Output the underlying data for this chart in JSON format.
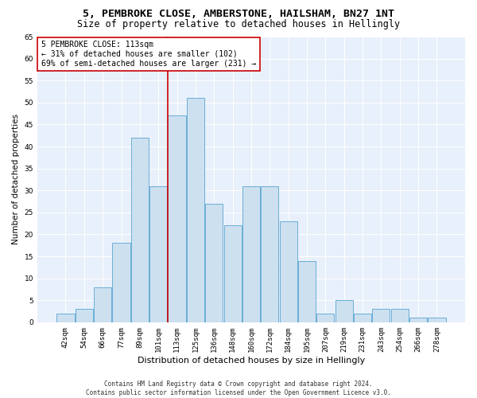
{
  "title1": "5, PEMBROKE CLOSE, AMBERSTONE, HAILSHAM, BN27 1NT",
  "title2": "Size of property relative to detached houses in Hellingly",
  "xlabel": "Distribution of detached houses by size in Hellingly",
  "ylabel": "Number of detached properties",
  "categories": [
    "42sqm",
    "54sqm",
    "66sqm",
    "77sqm",
    "89sqm",
    "101sqm",
    "113sqm",
    "125sqm",
    "136sqm",
    "148sqm",
    "160sqm",
    "172sqm",
    "184sqm",
    "195sqm",
    "207sqm",
    "219sqm",
    "231sqm",
    "243sqm",
    "254sqm",
    "266sqm",
    "278sqm"
  ],
  "values": [
    2,
    3,
    8,
    18,
    42,
    31,
    47,
    51,
    27,
    22,
    31,
    31,
    23,
    14,
    2,
    5,
    2,
    3,
    3,
    1,
    1
  ],
  "bar_color": "#cde0f0",
  "bar_edge_color": "#6aaed6",
  "vline_color": "#cc0000",
  "annotation_line1": "5 PEMBROKE CLOSE: 113sqm",
  "annotation_line2": "← 31% of detached houses are smaller (102)",
  "annotation_line3": "69% of semi-detached houses are larger (231) →",
  "annotation_box_color": "#ffffff",
  "annotation_box_edge": "#cc0000",
  "footer1": "Contains HM Land Registry data © Crown copyright and database right 2024.",
  "footer2": "Contains public sector information licensed under the Open Government Licence v3.0.",
  "ylim": [
    0,
    65
  ],
  "yticks": [
    0,
    5,
    10,
    15,
    20,
    25,
    30,
    35,
    40,
    45,
    50,
    55,
    60,
    65
  ],
  "bg_color": "#e8f0fb",
  "title1_fontsize": 9.5,
  "title2_fontsize": 8.5,
  "ylabel_fontsize": 7.5,
  "xlabel_fontsize": 8,
  "tick_fontsize": 6.5,
  "ann_fontsize": 7,
  "footer_fontsize": 5.5
}
